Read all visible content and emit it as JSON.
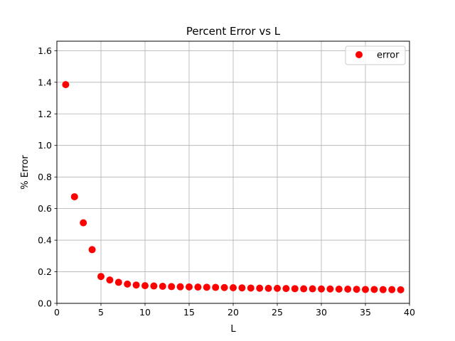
{
  "chart_data": {
    "type": "scatter",
    "title": "Percent Error vs L",
    "xlabel": "L",
    "ylabel": "% Error",
    "xlim": [
      0,
      40
    ],
    "ylim": [
      0,
      1.66
    ],
    "xticks": [
      "0",
      "5",
      "10",
      "15",
      "20",
      "25",
      "30",
      "35",
      "40"
    ],
    "yticks": [
      "0.0",
      "0.2",
      "0.4",
      "0.6",
      "0.8",
      "1.0",
      "1.2",
      "1.4",
      "1.6"
    ],
    "grid": true,
    "legend_position": "top-right",
    "series": [
      {
        "name": "error",
        "color": "#ff0000",
        "x": [
          1,
          2,
          3,
          4,
          5,
          6,
          7,
          8,
          9,
          10,
          11,
          12,
          13,
          14,
          15,
          16,
          17,
          18,
          19,
          20,
          21,
          22,
          23,
          24,
          25,
          26,
          27,
          28,
          29,
          30,
          31,
          32,
          33,
          34,
          35,
          36,
          37,
          38,
          39
        ],
        "y": [
          1.385,
          0.675,
          0.51,
          0.34,
          0.17,
          0.148,
          0.133,
          0.122,
          0.116,
          0.112,
          0.11,
          0.108,
          0.106,
          0.105,
          0.104,
          0.103,
          0.102,
          0.101,
          0.1,
          0.099,
          0.098,
          0.097,
          0.096,
          0.095,
          0.095,
          0.094,
          0.093,
          0.092,
          0.092,
          0.091,
          0.091,
          0.09,
          0.09,
          0.089,
          0.088,
          0.088,
          0.087,
          0.087,
          0.086
        ]
      }
    ]
  }
}
